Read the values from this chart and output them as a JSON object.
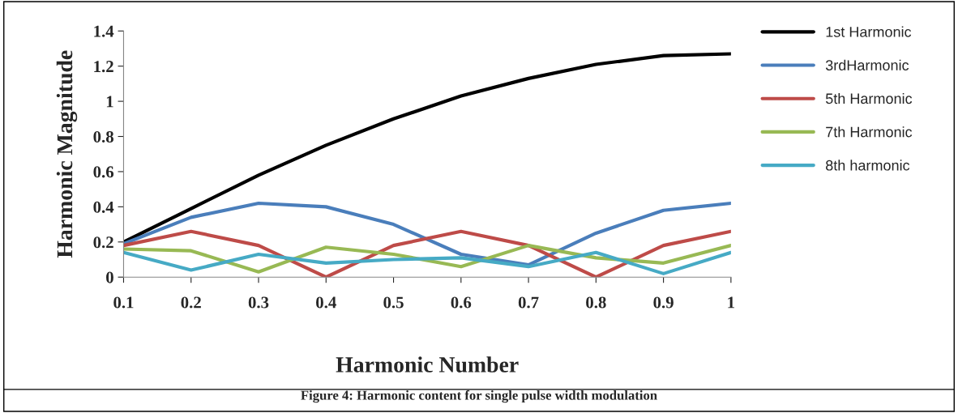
{
  "chart_data": {
    "type": "line",
    "xlabel": "Harmonic Number",
    "ylabel": "Harmonic Magnitude",
    "annotations": [
      "Figure 4: Harmonic content for single pulse width modulation"
    ],
    "x": [
      0.1,
      0.2,
      0.3,
      0.4,
      0.5,
      0.6,
      0.7,
      0.8,
      0.9,
      1
    ],
    "series": [
      {
        "name": "1st Harmonic",
        "color": "#000000",
        "values": [
          0.2,
          0.39,
          0.58,
          0.75,
          0.9,
          1.03,
          1.13,
          1.21,
          1.26,
          1.27
        ]
      },
      {
        "name": "3rdHarmonic",
        "color": "#4a7ebb",
        "values": [
          0.19,
          0.34,
          0.42,
          0.4,
          0.3,
          0.13,
          0.07,
          0.25,
          0.38,
          0.42
        ]
      },
      {
        "name": "5th Harmonic",
        "color": "#be4b48",
        "values": [
          0.18,
          0.26,
          0.18,
          0.0,
          0.18,
          0.26,
          0.18,
          0.0,
          0.18,
          0.26
        ]
      },
      {
        "name": "7th Harmonic",
        "color": "#98b954",
        "values": [
          0.16,
          0.15,
          0.03,
          0.17,
          0.13,
          0.06,
          0.18,
          0.11,
          0.08,
          0.18
        ]
      },
      {
        "name": "8th harmonic",
        "color": "#46aac5",
        "values": [
          0.14,
          0.04,
          0.13,
          0.08,
          0.1,
          0.11,
          0.06,
          0.14,
          0.02,
          0.14
        ]
      }
    ],
    "xlim": [
      0.1,
      1
    ],
    "ylim": [
      0,
      1.4
    ],
    "xticks": [
      0.1,
      0.2,
      0.3,
      0.4,
      0.5,
      0.6,
      0.7,
      0.8,
      0.9,
      1
    ],
    "yticks": [
      0,
      0.2,
      0.4,
      0.6,
      0.8,
      1,
      1.2,
      1.4
    ],
    "grid": false,
    "legend": "right",
    "marker": "none",
    "line_style": "solid"
  }
}
